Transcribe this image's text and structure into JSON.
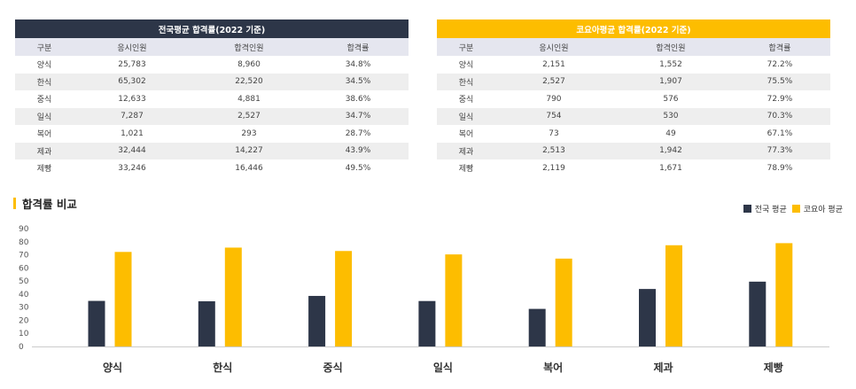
{
  "table_national": {
    "title": "전국평균 합격률(2022 기준)",
    "columns": [
      "구분",
      "응시인원",
      "합격인원",
      "합격률"
    ],
    "rows": [
      [
        "양식",
        "25,783",
        "8,960",
        "34.8%"
      ],
      [
        "한식",
        "65,302",
        "22,520",
        "34.5%"
      ],
      [
        "중식",
        "12,633",
        "4,881",
        "38.6%"
      ],
      [
        "일식",
        "7,287",
        "2,527",
        "34.7%"
      ],
      [
        "복어",
        "1,021",
        "293",
        "28.7%"
      ],
      [
        "제과",
        "32,444",
        "14,227",
        "43.9%"
      ],
      [
        "제빵",
        "33,246",
        "16,446",
        "49.5%"
      ]
    ]
  },
  "table_koyoa": {
    "title": "코요아평균 합격률(2022 기준)",
    "columns": [
      "구분",
      "응시인원",
      "합격인원",
      "합격률"
    ],
    "rows": [
      [
        "양식",
        "2,151",
        "1,552",
        "72.2%"
      ],
      [
        "한식",
        "2,527",
        "1,907",
        "75.5%"
      ],
      [
        "중식",
        "790",
        "576",
        "72.9%"
      ],
      [
        "일식",
        "754",
        "530",
        "70.3%"
      ],
      [
        "복어",
        "73",
        "49",
        "67.1%"
      ],
      [
        "제과",
        "2,513",
        "1,942",
        "77.3%"
      ],
      [
        "제빵",
        "2,119",
        "1,671",
        "78.9%"
      ]
    ]
  },
  "chart_data": {
    "type": "bar",
    "title": "합격률 비교",
    "categories": [
      "양식",
      "한식",
      "중식",
      "일식",
      "복어",
      "제과",
      "제빵"
    ],
    "series": [
      {
        "name": "전국 평균",
        "color": "#2d3648",
        "values": [
          34.8,
          34.5,
          38.6,
          34.7,
          28.7,
          43.9,
          49.5
        ]
      },
      {
        "name": "코요아 평균",
        "color": "#fdbd00",
        "values": [
          72.2,
          75.5,
          72.9,
          70.3,
          67.1,
          77.3,
          78.9
        ]
      }
    ],
    "yticks": [
      0,
      10,
      20,
      30,
      40,
      50,
      60,
      70,
      80,
      90
    ],
    "ylim": [
      0,
      90
    ],
    "grid": false,
    "legend": "top-right"
  }
}
